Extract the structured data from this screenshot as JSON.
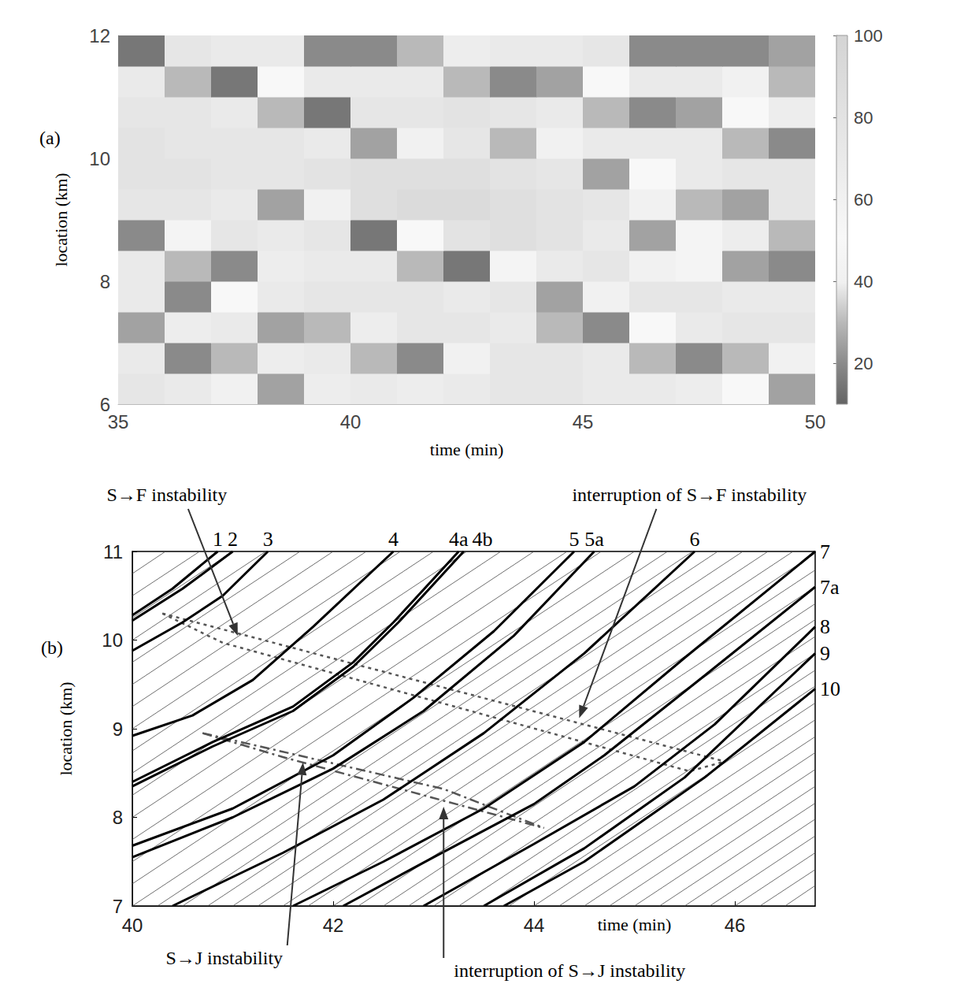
{
  "chart_data": [
    {
      "type": "heatmap",
      "panel": "(a)",
      "xlabel": "time (min)",
      "ylabel": "location (km)",
      "xlim": [
        35,
        50
      ],
      "xticks": [
        35,
        40,
        45,
        50
      ],
      "ylim": [
        6,
        12
      ],
      "yticks": [
        6,
        8,
        10,
        12
      ],
      "x_edges": [
        35,
        36,
        37,
        38,
        39,
        40,
        41,
        42,
        43,
        44,
        45,
        46,
        47,
        48,
        49,
        50
      ],
      "y_edges": [
        6,
        6.5,
        7,
        7.5,
        8,
        8.5,
        9,
        9.5,
        10,
        10.5,
        11,
        11.5,
        12
      ],
      "values": [
        [
          75,
          70,
          60,
          25,
          65,
          70,
          65,
          70,
          75,
          75,
          70,
          70,
          65,
          50,
          25
        ],
        [
          70,
          20,
          30,
          65,
          70,
          30,
          20,
          60,
          75,
          75,
          70,
          30,
          20,
          30,
          60
        ],
        [
          25,
          65,
          70,
          25,
          30,
          65,
          75,
          75,
          70,
          30,
          20,
          50,
          70,
          75,
          75
        ],
        [
          70,
          20,
          50,
          70,
          75,
          75,
          75,
          70,
          38,
          25,
          60,
          75,
          75,
          70,
          70
        ],
        [
          70,
          30,
          20,
          65,
          70,
          70,
          30,
          15,
          45,
          70,
          75,
          60,
          45,
          25,
          20
        ],
        [
          20,
          45,
          75,
          70,
          38,
          15,
          50,
          80,
          85,
          80,
          70,
          25,
          45,
          65,
          30
        ],
        [
          75,
          75,
          70,
          25,
          60,
          85,
          90,
          90,
          85,
          80,
          75,
          60,
          30,
          25,
          38
        ],
        [
          80,
          80,
          75,
          75,
          80,
          85,
          85,
          85,
          80,
          38,
          25,
          50,
          70,
          75,
          75
        ],
        [
          80,
          75,
          75,
          75,
          70,
          25,
          60,
          75,
          30,
          60,
          70,
          70,
          70,
          30,
          20
        ],
        [
          75,
          75,
          70,
          30,
          15,
          38,
          75,
          80,
          75,
          70,
          30,
          20,
          25,
          50,
          65
        ],
        [
          70,
          30,
          15,
          50,
          70,
          70,
          70,
          30,
          20,
          25,
          50,
          70,
          70,
          60,
          30
        ],
        [
          15,
          38,
          70,
          70,
          20,
          20,
          30,
          65,
          70,
          70,
          38,
          20,
          20,
          20,
          25
        ]
      ],
      "colorbar_range": [
        10,
        100
      ],
      "colorbar_ticks": [
        20,
        40,
        60,
        80,
        100
      ]
    },
    {
      "type": "line",
      "panel": "(b)",
      "xlabel": "time (min)",
      "ylabel": "location (km)",
      "xlim": [
        40,
        46.8
      ],
      "xticks": [
        40,
        42,
        44,
        46
      ],
      "ylim": [
        7,
        11
      ],
      "yticks": [
        7,
        8,
        9,
        10,
        11
      ],
      "series": [
        {
          "name": "1",
          "values": [
            [
              40,
              10.28
            ],
            [
              40.4,
              10.58
            ],
            [
              40.85,
              11
            ]
          ]
        },
        {
          "name": "2",
          "values": [
            [
              40,
              10.22
            ],
            [
              40.5,
              10.58
            ],
            [
              41.0,
              11
            ]
          ]
        },
        {
          "name": "3",
          "values": [
            [
              40,
              9.88
            ],
            [
              40.5,
              10.2
            ],
            [
              40.9,
              10.5
            ],
            [
              41.35,
              11
            ]
          ]
        },
        {
          "name": "4",
          "values": [
            [
              40,
              8.92
            ],
            [
              40.6,
              9.15
            ],
            [
              41.2,
              9.55
            ],
            [
              41.8,
              10.15
            ],
            [
              42.6,
              11
            ]
          ]
        },
        {
          "name": "4a",
          "values": [
            [
              40,
              8.4
            ],
            [
              40.8,
              8.85
            ],
            [
              41.6,
              9.25
            ],
            [
              42.2,
              9.75
            ],
            [
              42.6,
              10.2
            ],
            [
              43.25,
              11
            ]
          ]
        },
        {
          "name": "4b",
          "values": [
            [
              40,
              8.35
            ],
            [
              40.8,
              8.8
            ],
            [
              41.6,
              9.2
            ],
            [
              42.2,
              9.7
            ],
            [
              42.65,
              10.2
            ],
            [
              43.3,
              11
            ]
          ]
        },
        {
          "name": "5",
          "values": [
            [
              40,
              7.68
            ],
            [
              41,
              8.1
            ],
            [
              42,
              8.7
            ],
            [
              42.8,
              9.35
            ],
            [
              43.6,
              10.1
            ],
            [
              44.4,
              11
            ]
          ]
        },
        {
          "name": "5a",
          "values": [
            [
              40,
              7.55
            ],
            [
              41,
              8.0
            ],
            [
              42,
              8.55
            ],
            [
              42.9,
              9.2
            ],
            [
              43.8,
              10.05
            ],
            [
              44.6,
              11
            ]
          ]
        },
        {
          "name": "6",
          "values": [
            [
              40.4,
              7
            ],
            [
              41.5,
              7.6
            ],
            [
              42.5,
              8.2
            ],
            [
              43.5,
              8.95
            ],
            [
              44.5,
              9.85
            ],
            [
              45.6,
              11
            ]
          ]
        },
        {
          "name": "7",
          "values": [
            [
              41.6,
              7
            ],
            [
              42.5,
              7.5
            ],
            [
              43.5,
              8.1
            ],
            [
              44.5,
              8.85
            ],
            [
              45.5,
              9.8
            ],
            [
              46.8,
              11
            ]
          ]
        },
        {
          "name": "7a",
          "values": [
            [
              42.1,
              7
            ],
            [
              43,
              7.55
            ],
            [
              44,
              8.15
            ],
            [
              44.7,
              8.7
            ],
            [
              45.7,
              9.6
            ],
            [
              46.8,
              10.6
            ]
          ]
        },
        {
          "name": "8",
          "values": [
            [
              42.9,
              7
            ],
            [
              44,
              7.7
            ],
            [
              45,
              8.35
            ],
            [
              45.8,
              9.05
            ],
            [
              46.8,
              10.15
            ]
          ]
        },
        {
          "name": "9",
          "values": [
            [
              43.5,
              7
            ],
            [
              44.5,
              7.65
            ],
            [
              45.5,
              8.45
            ],
            [
              46.8,
              9.85
            ]
          ]
        },
        {
          "name": "10",
          "values": [
            [
              43.7,
              7
            ],
            [
              44.5,
              7.5
            ],
            [
              45.7,
              8.45
            ],
            [
              46.8,
              9.45
            ]
          ]
        }
      ],
      "background_series": [
        [
          [
            40,
            7.25
          ],
          [
            45.0,
            11
          ]
        ],
        [
          [
            40,
            7.5
          ],
          [
            44.67,
            11
          ]
        ],
        [
          [
            40,
            7.75
          ],
          [
            44.33,
            11
          ]
        ],
        [
          [
            40,
            8.0
          ],
          [
            44.0,
            11
          ]
        ],
        [
          [
            40,
            8.25
          ],
          [
            43.67,
            11
          ]
        ],
        [
          [
            40,
            8.5
          ],
          [
            43.33,
            11
          ]
        ],
        [
          [
            40,
            8.75
          ],
          [
            43.0,
            11
          ]
        ],
        [
          [
            40,
            9.0
          ],
          [
            42.67,
            11
          ]
        ],
        [
          [
            40,
            9.25
          ],
          [
            42.33,
            11
          ]
        ],
        [
          [
            40,
            9.5
          ],
          [
            42.0,
            11
          ]
        ],
        [
          [
            40,
            9.75
          ],
          [
            41.67,
            11
          ]
        ],
        [
          [
            40,
            10.0
          ],
          [
            41.33,
            11
          ]
        ],
        [
          [
            40,
            10.25
          ],
          [
            41.0,
            11
          ]
        ],
        [
          [
            40,
            10.5
          ],
          [
            40.67,
            11
          ]
        ],
        [
          [
            40,
            10.75
          ],
          [
            40.33,
            11
          ]
        ],
        [
          [
            40,
            7
          ],
          [
            45.33,
            11
          ]
        ],
        [
          [
            40.25,
            7
          ],
          [
            45.58,
            11
          ]
        ],
        [
          [
            40.5,
            7
          ],
          [
            45.83,
            11
          ]
        ],
        [
          [
            40.75,
            7
          ],
          [
            46.08,
            11
          ]
        ],
        [
          [
            41,
            7
          ],
          [
            46.33,
            11
          ]
        ],
        [
          [
            41.25,
            7
          ],
          [
            46.58,
            11
          ]
        ],
        [
          [
            41.5,
            7
          ],
          [
            46.8,
            10.98
          ]
        ],
        [
          [
            41.75,
            7
          ],
          [
            46.8,
            10.79
          ]
        ],
        [
          [
            42,
            7
          ],
          [
            46.8,
            10.6
          ]
        ],
        [
          [
            42.25,
            7
          ],
          [
            46.8,
            10.41
          ]
        ],
        [
          [
            42.5,
            7
          ],
          [
            46.8,
            10.23
          ]
        ],
        [
          [
            42.75,
            7
          ],
          [
            46.8,
            10.04
          ]
        ],
        [
          [
            43,
            7
          ],
          [
            46.8,
            9.85
          ]
        ],
        [
          [
            43.25,
            7
          ],
          [
            46.8,
            9.66
          ]
        ],
        [
          [
            43.5,
            7
          ],
          [
            46.8,
            9.48
          ]
        ],
        [
          [
            43.75,
            7
          ],
          [
            46.8,
            9.29
          ]
        ],
        [
          [
            44,
            7
          ],
          [
            46.8,
            9.1
          ]
        ],
        [
          [
            44.25,
            7
          ],
          [
            46.8,
            8.91
          ]
        ],
        [
          [
            44.5,
            7
          ],
          [
            46.8,
            8.73
          ]
        ],
        [
          [
            44.75,
            7
          ],
          [
            46.8,
            8.54
          ]
        ],
        [
          [
            45,
            7
          ],
          [
            46.8,
            8.35
          ]
        ],
        [
          [
            45.25,
            7
          ],
          [
            46.8,
            8.16
          ]
        ],
        [
          [
            45.5,
            7
          ],
          [
            46.8,
            7.98
          ]
        ],
        [
          [
            45.75,
            7
          ],
          [
            46.8,
            7.79
          ]
        ],
        [
          [
            46,
            7
          ],
          [
            46.8,
            7.6
          ]
        ],
        [
          [
            46.25,
            7
          ],
          [
            46.8,
            7.41
          ]
        ],
        [
          [
            46.5,
            7
          ],
          [
            46.8,
            7.23
          ]
        ]
      ],
      "boundaries": [
        {
          "line_style": "dotted",
          "values": [
            [
              40.3,
              10.3
            ],
            [
              45.9,
              8.63
            ]
          ]
        },
        {
          "line_style": "dotted",
          "values": [
            [
              40.3,
              10.3
            ],
            [
              40.9,
              9.97
            ],
            [
              45.55,
              8.52
            ],
            [
              45.9,
              8.63
            ]
          ]
        },
        {
          "line_style": "dashdot",
          "values": [
            [
              40.7,
              8.95
            ],
            [
              43.1,
              8.32
            ],
            [
              44.1,
              7.88
            ]
          ]
        },
        {
          "line_style": "dashdot",
          "values": [
            [
              40.7,
              8.95
            ],
            [
              41.5,
              8.68
            ],
            [
              44.1,
              7.88
            ]
          ]
        }
      ],
      "annotations": [
        {
          "text": "S→F instability",
          "target": [
            41.05,
            10.05
          ]
        },
        {
          "text": "interruption of S→F instability",
          "target": [
            44.45,
            9.12
          ]
        },
        {
          "text": "S→J instability",
          "target": [
            41.7,
            8.62
          ]
        },
        {
          "text": "interruption of S→J instability",
          "target": [
            43.1,
            8.12
          ]
        }
      ]
    }
  ]
}
